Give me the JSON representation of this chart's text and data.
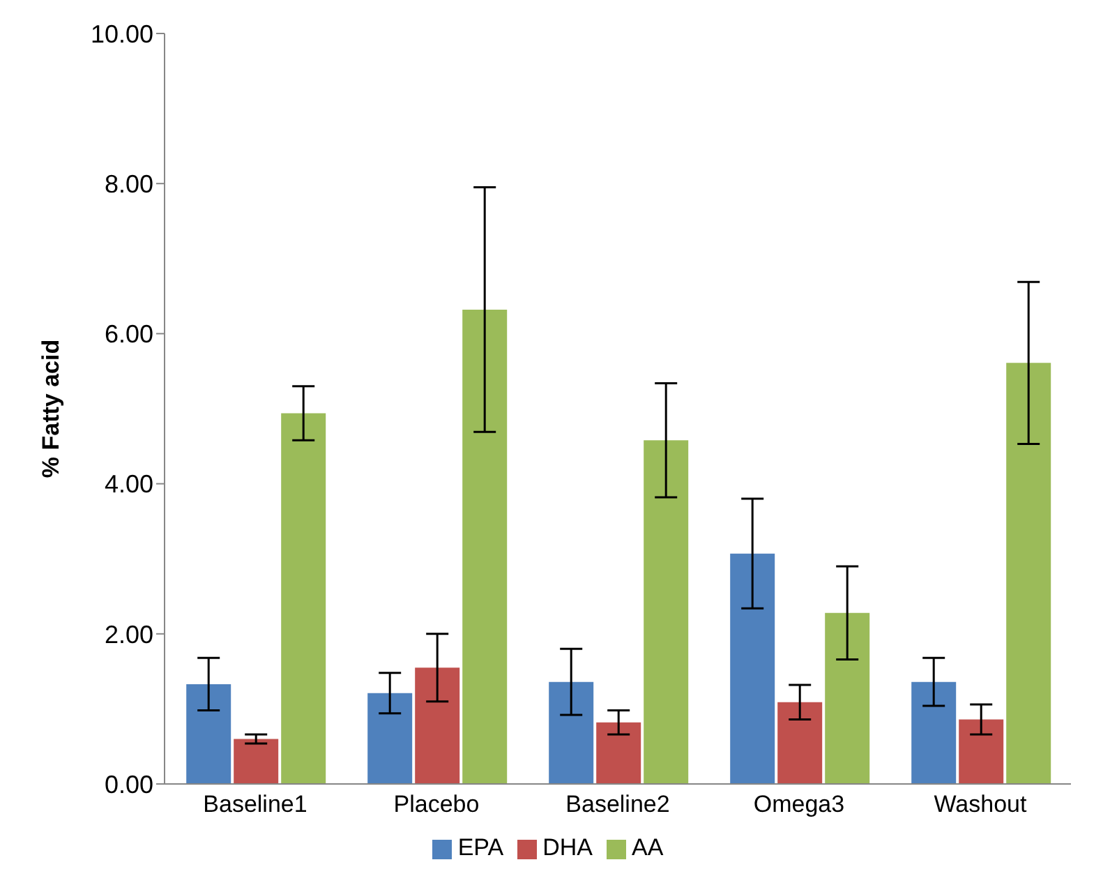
{
  "chart_data": {
    "type": "bar",
    "ylabel": "% Fatty acid",
    "categories": [
      "Baseline1",
      "Placebo",
      "Baseline2",
      "Omega3",
      "Washout"
    ],
    "series": [
      {
        "name": "EPA",
        "color": "#4f81bd",
        "values": [
          1.33,
          1.21,
          1.36,
          3.07,
          1.36
        ],
        "errors": [
          0.35,
          0.27,
          0.44,
          0.73,
          0.32
        ]
      },
      {
        "name": "DHA",
        "color": "#c0504d",
        "values": [
          0.6,
          1.55,
          0.82,
          1.09,
          0.86
        ],
        "errors": [
          0.06,
          0.45,
          0.16,
          0.23,
          0.2
        ]
      },
      {
        "name": "AA",
        "color": "#9bbb59",
        "values": [
          4.94,
          6.32,
          4.58,
          2.28,
          5.61
        ],
        "errors": [
          0.36,
          1.63,
          0.76,
          0.62,
          1.08
        ]
      }
    ],
    "ylim": [
      0,
      10
    ],
    "yticks": [
      {
        "value": 0,
        "label": "0.00"
      },
      {
        "value": 2,
        "label": "2.00"
      },
      {
        "value": 4,
        "label": "4.00"
      },
      {
        "value": 6,
        "label": "6.00"
      },
      {
        "value": 8,
        "label": "8.00"
      },
      {
        "value": 10,
        "label": "10.00"
      }
    ],
    "grid": false,
    "legend": "bottom"
  }
}
